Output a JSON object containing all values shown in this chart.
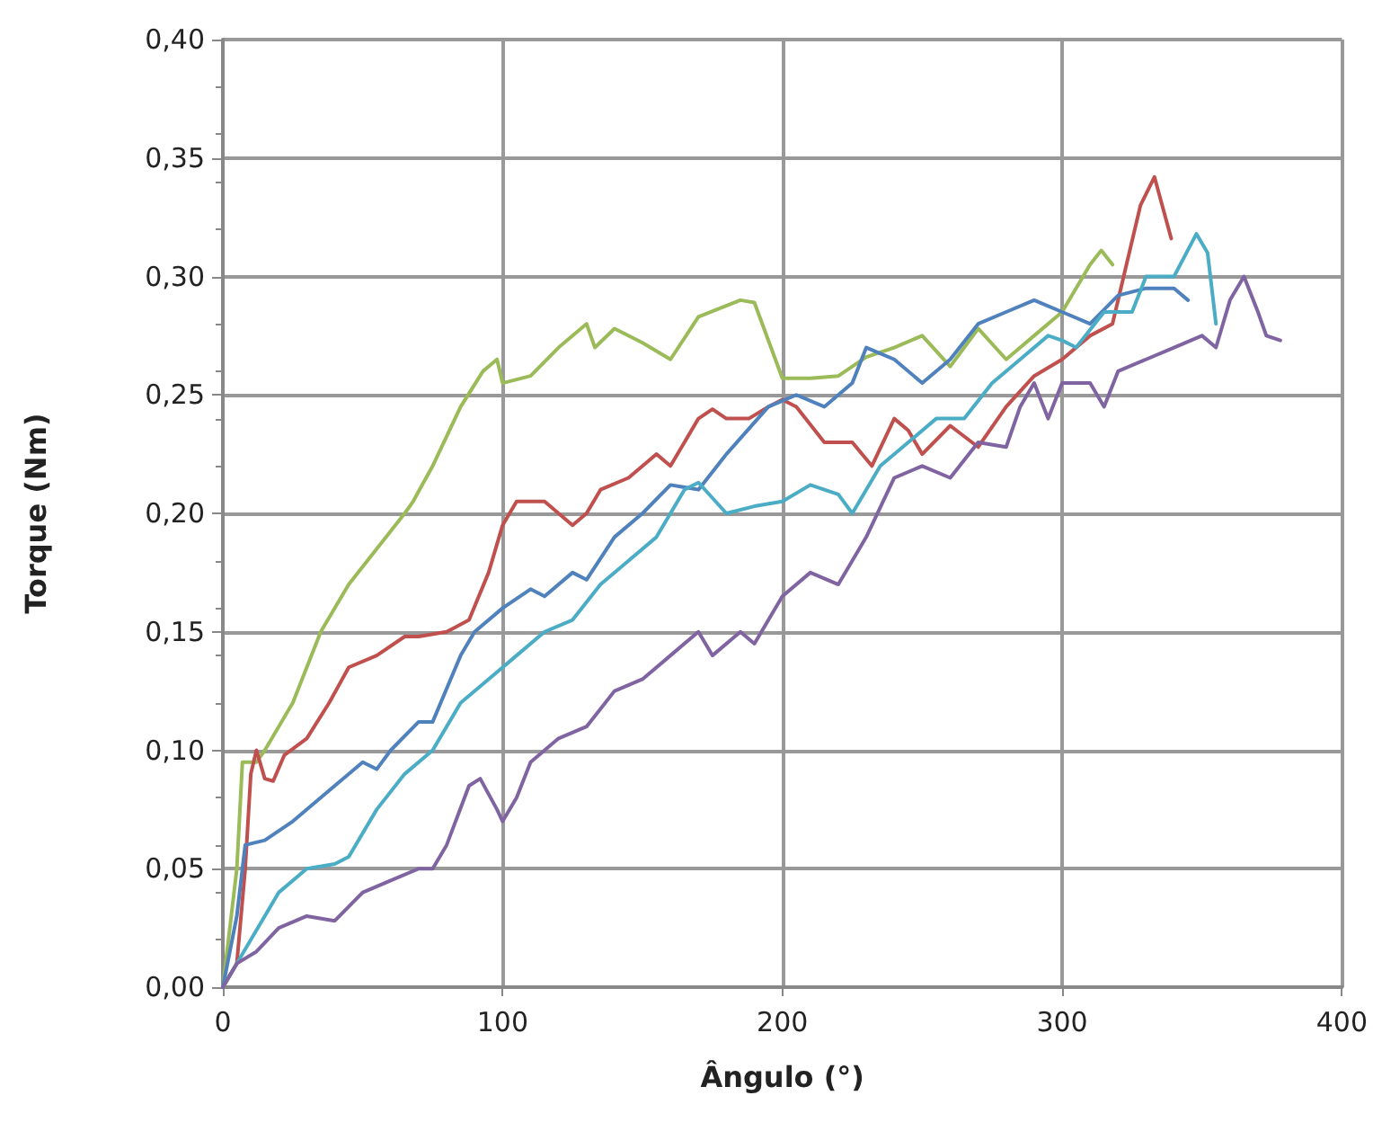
{
  "chart_data": {
    "type": "line",
    "xlabel": "Ângulo (°)",
    "ylabel": "Torque (Nm)",
    "xlim": [
      0,
      400
    ],
    "xticks": [
      0,
      100,
      200,
      300,
      400
    ],
    "ylim": [
      0,
      0.4
    ],
    "yticks": [
      {
        "value": 0,
        "label": "0,00"
      },
      {
        "value": 0.05,
        "label": "0,05"
      },
      {
        "value": 0.1,
        "label": "0,10"
      },
      {
        "value": 0.15,
        "label": "0,15"
      },
      {
        "value": 0.2,
        "label": "0,20"
      },
      {
        "value": 0.25,
        "label": "0,25"
      },
      {
        "value": 0.3,
        "label": "0,30"
      },
      {
        "value": 0.35,
        "label": "0,35"
      },
      {
        "value": 0.4,
        "label": "0,40"
      }
    ],
    "grid": true,
    "marker": "none",
    "line_style": "solid",
    "series": [
      {
        "color": "#9bbb59",
        "x": [
          0,
          5,
          7,
          12,
          15,
          25,
          35,
          45,
          55,
          65,
          68,
          75,
          85,
          93,
          98,
          100,
          110,
          120,
          130,
          133,
          140,
          150,
          160,
          170,
          185,
          190,
          200,
          210,
          220,
          230,
          240,
          250,
          260,
          270,
          280,
          290,
          300,
          310,
          314,
          318
        ],
        "values": [
          0,
          0.05,
          0.095,
          0.095,
          0.1,
          0.12,
          0.15,
          0.17,
          0.185,
          0.2,
          0.205,
          0.22,
          0.245,
          0.26,
          0.265,
          0.255,
          0.258,
          0.27,
          0.28,
          0.27,
          0.278,
          0.272,
          0.265,
          0.283,
          0.29,
          0.289,
          0.257,
          0.257,
          0.258,
          0.266,
          0.27,
          0.275,
          0.262,
          0.278,
          0.265,
          0.275,
          0.285,
          0.305,
          0.311,
          0.305
        ]
      },
      {
        "color": "#c0504d",
        "x": [
          0,
          5,
          8,
          10,
          12,
          15,
          18,
          22,
          30,
          38,
          45,
          55,
          65,
          70,
          80,
          88,
          95,
          100,
          105,
          115,
          125,
          130,
          135,
          145,
          155,
          160,
          170,
          175,
          180,
          188,
          195,
          200,
          205,
          215,
          225,
          232,
          240,
          245,
          250,
          260,
          270,
          280,
          290,
          300,
          310,
          318,
          322,
          328,
          333,
          339
        ],
        "values": [
          0,
          0.01,
          0.05,
          0.09,
          0.1,
          0.088,
          0.087,
          0.098,
          0.105,
          0.12,
          0.135,
          0.14,
          0.148,
          0.148,
          0.15,
          0.155,
          0.175,
          0.195,
          0.205,
          0.205,
          0.195,
          0.2,
          0.21,
          0.215,
          0.225,
          0.22,
          0.24,
          0.244,
          0.24,
          0.24,
          0.245,
          0.248,
          0.245,
          0.23,
          0.23,
          0.22,
          0.24,
          0.235,
          0.225,
          0.237,
          0.228,
          0.245,
          0.258,
          0.265,
          0.275,
          0.28,
          0.3,
          0.33,
          0.342,
          0.316
        ]
      },
      {
        "color": "#4f81bd",
        "x": [
          0,
          5,
          8,
          15,
          25,
          40,
          50,
          55,
          60,
          70,
          75,
          85,
          90,
          100,
          110,
          115,
          125,
          130,
          140,
          150,
          160,
          170,
          180,
          195,
          205,
          215,
          225,
          230,
          240,
          250,
          260,
          270,
          280,
          290,
          300,
          310,
          320,
          330,
          340,
          345
        ],
        "values": [
          0,
          0.03,
          0.06,
          0.062,
          0.07,
          0.085,
          0.095,
          0.092,
          0.1,
          0.112,
          0.112,
          0.14,
          0.15,
          0.16,
          0.168,
          0.165,
          0.175,
          0.172,
          0.19,
          0.2,
          0.212,
          0.21,
          0.225,
          0.245,
          0.25,
          0.245,
          0.255,
          0.27,
          0.265,
          0.255,
          0.265,
          0.28,
          0.285,
          0.29,
          0.285,
          0.28,
          0.292,
          0.295,
          0.295,
          0.29
        ]
      },
      {
        "color": "#4bacc6",
        "x": [
          0,
          10,
          20,
          30,
          40,
          45,
          55,
          65,
          75,
          85,
          95,
          105,
          115,
          125,
          135,
          145,
          155,
          165,
          170,
          180,
          190,
          200,
          210,
          220,
          225,
          235,
          245,
          255,
          265,
          275,
          285,
          295,
          300,
          305,
          315,
          325,
          330,
          340,
          348,
          352,
          355
        ],
        "values": [
          0,
          0.02,
          0.04,
          0.05,
          0.052,
          0.055,
          0.075,
          0.09,
          0.1,
          0.12,
          0.13,
          0.14,
          0.15,
          0.155,
          0.17,
          0.18,
          0.19,
          0.21,
          0.213,
          0.2,
          0.203,
          0.205,
          0.212,
          0.208,
          0.2,
          0.22,
          0.23,
          0.24,
          0.24,
          0.255,
          0.265,
          0.275,
          0.273,
          0.27,
          0.285,
          0.285,
          0.3,
          0.3,
          0.318,
          0.31,
          0.28
        ]
      },
      {
        "color": "#8064a2",
        "x": [
          0,
          5,
          12,
          20,
          30,
          40,
          50,
          60,
          70,
          75,
          80,
          88,
          92,
          98,
          100,
          105,
          110,
          120,
          130,
          140,
          150,
          160,
          170,
          175,
          185,
          190,
          200,
          210,
          220,
          230,
          240,
          250,
          260,
          270,
          280,
          285,
          290,
          295,
          300,
          310,
          315,
          320,
          330,
          340,
          350,
          355,
          360,
          365,
          370,
          373,
          378
        ],
        "values": [
          0,
          0.01,
          0.015,
          0.025,
          0.03,
          0.028,
          0.04,
          0.045,
          0.05,
          0.05,
          0.06,
          0.085,
          0.088,
          0.075,
          0.07,
          0.08,
          0.095,
          0.105,
          0.11,
          0.125,
          0.13,
          0.14,
          0.15,
          0.14,
          0.15,
          0.145,
          0.165,
          0.175,
          0.17,
          0.19,
          0.215,
          0.22,
          0.215,
          0.23,
          0.228,
          0.245,
          0.255,
          0.24,
          0.255,
          0.255,
          0.245,
          0.26,
          0.265,
          0.27,
          0.275,
          0.27,
          0.29,
          0.3,
          0.285,
          0.275,
          0.273
        ]
      }
    ]
  }
}
